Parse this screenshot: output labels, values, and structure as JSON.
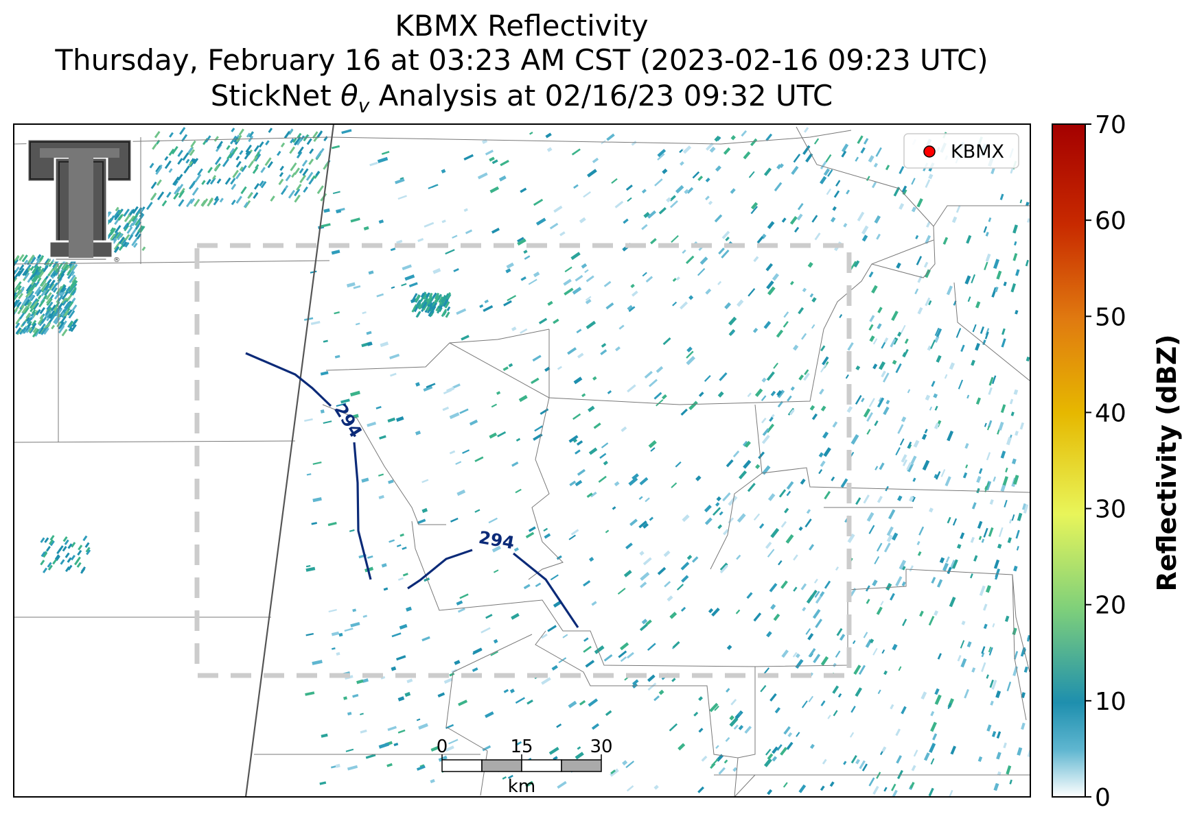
{
  "title": {
    "line1": "KBMX Reflectivity",
    "line2": "Thursday, February 16 at 03:23 AM CST (2023-02-16 09:23 UTC)",
    "line3_prefix": "StickNet ",
    "line3_symbol": "θ",
    "line3_subscript": "v",
    "line3_suffix": " Analysis at 02/16/23 09:32 UTC"
  },
  "legend": {
    "label": "KBMX",
    "marker_color": "#ff0000"
  },
  "contours": [
    {
      "label": "294",
      "color": "#0b2a78"
    },
    {
      "label": "294",
      "color": "#0b2a78"
    }
  ],
  "scale_bar": {
    "ticks": [
      "0",
      "15",
      "30"
    ],
    "unit": "km"
  },
  "colorbar": {
    "label": "Reflectivity (dBZ)",
    "ticks": [
      "0",
      "10",
      "20",
      "30",
      "40",
      "50",
      "60",
      "70"
    ],
    "range": [
      0,
      70
    ],
    "colors": [
      "#ffffff",
      "#1e8fae",
      "#7fd07a",
      "#e8f55a",
      "#e6b800",
      "#e07a10",
      "#c82a00",
      "#a40000"
    ]
  },
  "logo": {
    "text": "Texas Tech Double T"
  },
  "analysis_domain": "dashed gray box"
}
